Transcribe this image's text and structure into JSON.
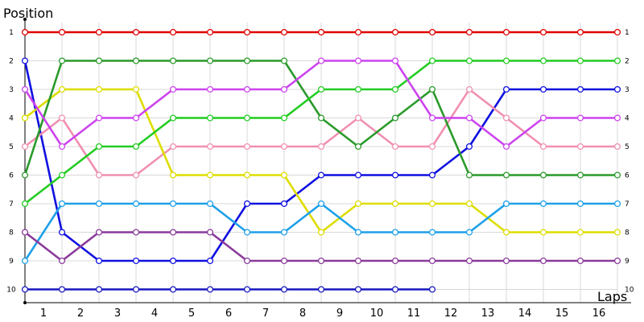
{
  "chart_data": {
    "type": "line",
    "title": "",
    "xlabel": "Laps",
    "ylabel": "Position",
    "x": [
      0,
      1,
      2,
      3,
      4,
      5,
      6,
      7,
      8,
      9,
      10,
      11,
      12,
      13,
      14,
      15,
      16
    ],
    "x_tick_labels": [
      "1",
      "2",
      "3",
      "4",
      "5",
      "6",
      "7",
      "8",
      "9",
      "10",
      "11",
      "12",
      "13",
      "14",
      "15",
      "16"
    ],
    "y_tick_labels": [
      "1",
      "2",
      "3",
      "4",
      "5",
      "6",
      "7",
      "8",
      "9",
      "10"
    ],
    "ylim": [
      1,
      10
    ],
    "y_inverted": true,
    "grid": true,
    "series": [
      {
        "color": "#e00000",
        "values": [
          1,
          1,
          1,
          1,
          1,
          1,
          1,
          1,
          1,
          1,
          1,
          1,
          1,
          1,
          1,
          1,
          1
        ]
      },
      {
        "color": "#1010e0",
        "values": [
          2,
          8,
          9,
          9,
          9,
          9,
          7,
          7,
          6,
          6,
          6,
          6,
          5,
          3,
          3,
          3,
          3
        ]
      },
      {
        "color": "#f090b0",
        "values": [
          5,
          4,
          6,
          6,
          5,
          5,
          5,
          5,
          5,
          4,
          5,
          5,
          3,
          4,
          5,
          5,
          5
        ]
      },
      {
        "color": "#dddd00",
        "values": [
          4,
          3,
          3,
          3,
          6,
          6,
          6,
          6,
          8,
          7,
          7,
          7,
          7,
          8,
          8,
          8,
          8
        ]
      },
      {
        "color": "#2a9a2a",
        "values": [
          6,
          2,
          2,
          2,
          2,
          2,
          2,
          2,
          4,
          5,
          4,
          3,
          6,
          6,
          6,
          6,
          6
        ]
      },
      {
        "color": "#22cc22",
        "values": [
          7,
          6,
          5,
          5,
          4,
          4,
          4,
          4,
          3,
          3,
          3,
          2,
          2,
          2,
          2,
          2,
          2
        ]
      },
      {
        "color": "#cc44ee",
        "values": [
          3,
          5,
          4,
          4,
          3,
          3,
          3,
          3,
          2,
          2,
          2,
          4,
          4,
          5,
          4,
          4,
          4
        ]
      },
      {
        "color": "#1ea0e8",
        "values": [
          9,
          7,
          7,
          7,
          7,
          7,
          8,
          8,
          7,
          8,
          8,
          8,
          8,
          7,
          7,
          7,
          7
        ]
      },
      {
        "color": "#8a3a9a",
        "values": [
          8,
          9,
          8,
          8,
          8,
          8,
          9,
          9,
          9,
          9,
          9,
          9,
          9,
          9,
          9,
          9,
          9
        ]
      },
      {
        "color": "#1818c0",
        "values": [
          10,
          10,
          10,
          10,
          10,
          10,
          10,
          10,
          10,
          10,
          10,
          10,
          null,
          null,
          null,
          null,
          null
        ]
      }
    ]
  }
}
